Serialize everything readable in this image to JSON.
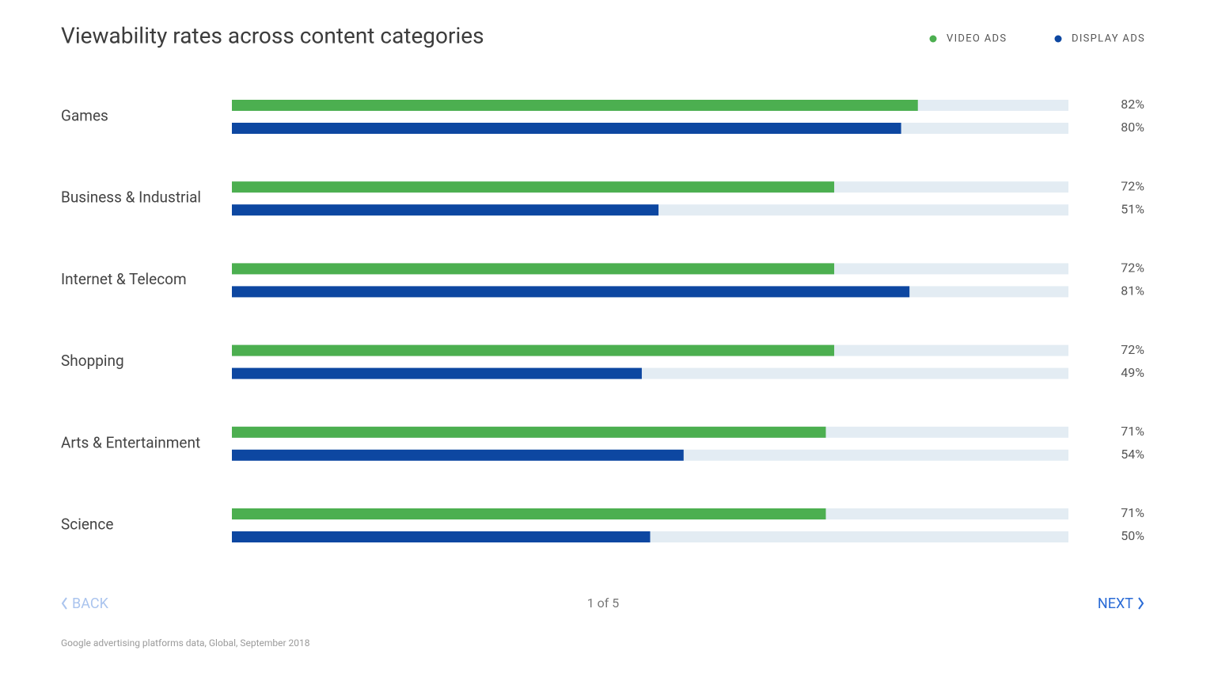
{
  "chart_data": {
    "type": "bar",
    "orientation": "horizontal",
    "title": "Viewability rates across content categories",
    "categories": [
      "Games",
      "Business & Industrial",
      "Internet & Telecom",
      "Shopping",
      "Arts & Entertainment",
      "Science"
    ],
    "series": [
      {
        "name": "VIDEO ADS",
        "color": "#4caf50",
        "values": [
          82,
          72,
          72,
          72,
          71,
          71
        ],
        "value_labels": [
          "82%",
          "72%",
          "72%",
          "72%",
          "71%",
          "71%"
        ]
      },
      {
        "name": "DISPLAY ADS",
        "color": "#0d47a1",
        "values": [
          80,
          51,
          81,
          49,
          54,
          50
        ],
        "value_labels": [
          "80%",
          "51%",
          "81%",
          "49%",
          "54%",
          "50%"
        ]
      }
    ],
    "xlim": [
      0,
      100
    ],
    "track_color": "#e3ecf3",
    "legend": "top-right"
  },
  "navigation": {
    "back": "BACK",
    "page": "1 of 5",
    "next": "NEXT"
  },
  "source": "Google advertising platforms data, Global, September 2018"
}
